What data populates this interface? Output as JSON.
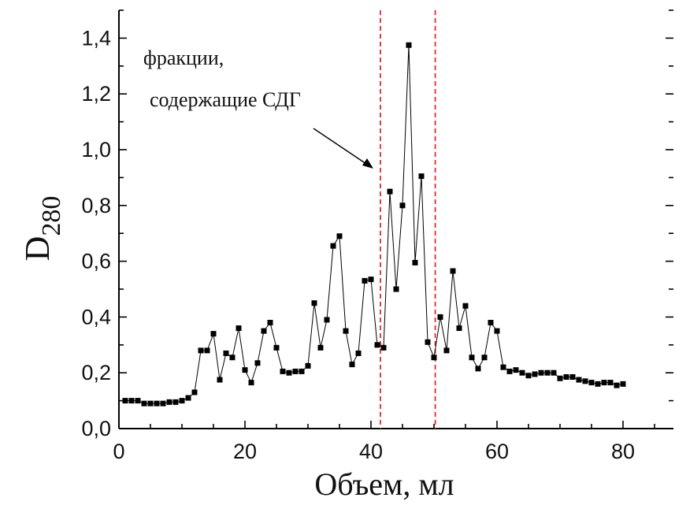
{
  "chart_data": {
    "type": "line",
    "x_label": "Объем, мл",
    "y_label_main": "D",
    "y_label_sub": "280",
    "annotation_line1": "фракции,",
    "annotation_line2": "содержащие СДГ",
    "xlim": [
      0,
      88
    ],
    "ylim": [
      0.0,
      1.5
    ],
    "x_ticks": [
      0,
      20,
      40,
      60,
      80
    ],
    "x_tick_labels": [
      "0",
      "20",
      "40",
      "60",
      "80"
    ],
    "y_ticks": [
      0.0,
      0.2,
      0.4,
      0.6,
      0.8,
      1.0,
      1.2,
      1.4
    ],
    "y_tick_labels": [
      "0,0",
      "0,2",
      "0,4",
      "0,6",
      "0,8",
      "1,0",
      "1,2",
      "1,4"
    ],
    "reference_lines_x": [
      41.5,
      50.2
    ],
    "reference_line_color": "#e8262c",
    "line_color": "#000000",
    "marker": "square",
    "grid": false,
    "series": [
      {
        "x": [
          1,
          2,
          3,
          4,
          5,
          6,
          7,
          8,
          9,
          10,
          11,
          12,
          13,
          14,
          15,
          16,
          17,
          18,
          19,
          20,
          21,
          22,
          23,
          24,
          25,
          26,
          27,
          28,
          29,
          30,
          31,
          32,
          33,
          34,
          35,
          36,
          37,
          38,
          39,
          40,
          41,
          42,
          43,
          44,
          45,
          46,
          47,
          48,
          49,
          50,
          51,
          52,
          53,
          54,
          55,
          56,
          57,
          58,
          59,
          60,
          61,
          62,
          63,
          64,
          65,
          66,
          67,
          68,
          69,
          70,
          71,
          72,
          73,
          74,
          75,
          76,
          77,
          78,
          79,
          80
        ],
        "y": [
          0.1,
          0.1,
          0.1,
          0.09,
          0.09,
          0.09,
          0.09,
          0.095,
          0.095,
          0.1,
          0.11,
          0.13,
          0.28,
          0.28,
          0.34,
          0.175,
          0.27,
          0.255,
          0.36,
          0.21,
          0.165,
          0.235,
          0.35,
          0.38,
          0.29,
          0.205,
          0.2,
          0.205,
          0.205,
          0.225,
          0.45,
          0.29,
          0.39,
          0.655,
          0.69,
          0.35,
          0.23,
          0.27,
          0.53,
          0.535,
          0.3,
          0.29,
          0.85,
          0.5,
          0.8,
          1.375,
          0.595,
          0.905,
          0.31,
          0.255,
          0.4,
          0.28,
          0.565,
          0.36,
          0.44,
          0.255,
          0.215,
          0.255,
          0.38,
          0.35,
          0.22,
          0.205,
          0.21,
          0.2,
          0.19,
          0.195,
          0.2,
          0.2,
          0.2,
          0.18,
          0.185,
          0.185,
          0.175,
          0.17,
          0.165,
          0.16,
          0.165,
          0.165,
          0.155,
          0.16
        ]
      }
    ]
  }
}
